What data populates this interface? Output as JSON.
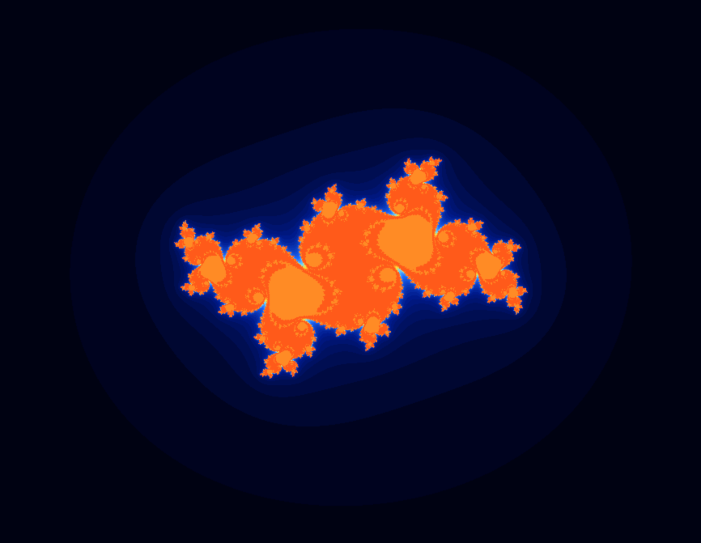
{
  "image": {
    "subject": "julia-set-fractal",
    "colors": {
      "background": "#000000",
      "outer_glow": "#000320",
      "mid_glow": "#001a8c",
      "branch": "#1e6bff",
      "branch_light": "#6fd3ff",
      "core": "#ffe23a",
      "core_hot": "#ff5a1a"
    }
  }
}
